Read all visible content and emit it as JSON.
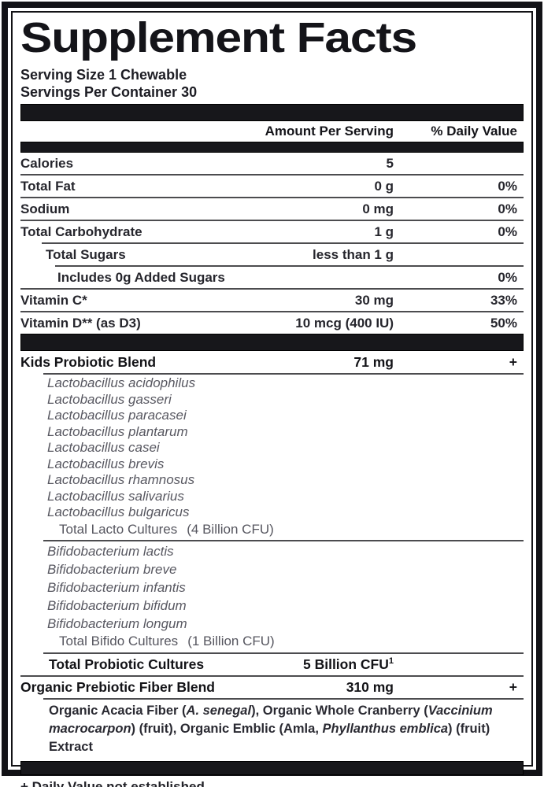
{
  "label": {
    "title": "Supplement Facts",
    "serving_size": "Serving Size 1 Chewable",
    "servings_per_container": "Servings Per Container 30",
    "columns": {
      "amount": "Amount Per Serving",
      "daily_value": "% Daily Value"
    },
    "nutrients": [
      {
        "name": "Calories",
        "amount": "5",
        "dv": ""
      },
      {
        "name": "Total Fat",
        "amount": "0 g",
        "dv": "0%"
      },
      {
        "name": "Sodium",
        "amount": "0 mg",
        "dv": "0%"
      },
      {
        "name": "Total Carbohydrate",
        "amount": "1 g",
        "dv": "0%"
      },
      {
        "name": "Total Sugars",
        "amount": "less than 1 g",
        "dv": ""
      },
      {
        "name": "Includes 0g Added Sugars",
        "amount": "",
        "dv": "0%"
      },
      {
        "name": "Vitamin C*",
        "amount": "30 mg",
        "dv": "33%"
      },
      {
        "name": "Vitamin D** (as D3)",
        "amount": "10 mcg (400 IU)",
        "dv": "50%"
      }
    ],
    "probiotic_blend": {
      "name": "Kids Probiotic Blend",
      "amount": "71 mg",
      "dv": "+",
      "lacto_species": [
        "Lactobacillus acidophilus",
        "Lactobacillus gasseri",
        "Lactobacillus paracasei",
        "Lactobacillus plantarum",
        "Lactobacillus casei",
        "Lactobacillus brevis",
        "Lactobacillus rhamnosus",
        "Lactobacillus salivarius",
        "Lactobacillus bulgaricus"
      ],
      "lacto_total_label": "Total Lacto Cultures",
      "lacto_total_cfu": "(4 Billion CFU)",
      "bifido_species": [
        "Bifidobacterium lactis",
        "Bifidobacterium breve",
        "Bifidobacterium infantis",
        "Bifidobacterium bifidum",
        "Bifidobacterium longum"
      ],
      "bifido_total_label": "Total Bifido Cultures",
      "bifido_total_cfu": "(1 Billion CFU)",
      "total_label": "Total Probiotic Cultures",
      "total_amount": "5 Billion CFU",
      "total_amount_sup": "1"
    },
    "prebiotic_blend": {
      "name": "Organic Prebiotic Fiber Blend",
      "amount": "310 mg",
      "dv": "+",
      "description_segments": [
        {
          "t": "Organic Acacia Fiber (",
          "i": false
        },
        {
          "t": "A. senegal",
          "i": true
        },
        {
          "t": "), Organic Whole Cranberry (",
          "i": false
        },
        {
          "t": "Vaccinium macrocarpon",
          "i": true
        },
        {
          "t": ") (fruit), Organic Emblic (Amla, ",
          "i": false
        },
        {
          "t": "Phyllanthus emblica",
          "i": true
        },
        {
          "t": ") (fruit) Extract",
          "i": false
        }
      ]
    },
    "footnote": "+ Daily Value not established.",
    "colors": {
      "ink": "#141419",
      "bar": "#17171b",
      "rule": "#4c4c4f",
      "muted_text": "#585861",
      "background": "#ffffff"
    }
  }
}
